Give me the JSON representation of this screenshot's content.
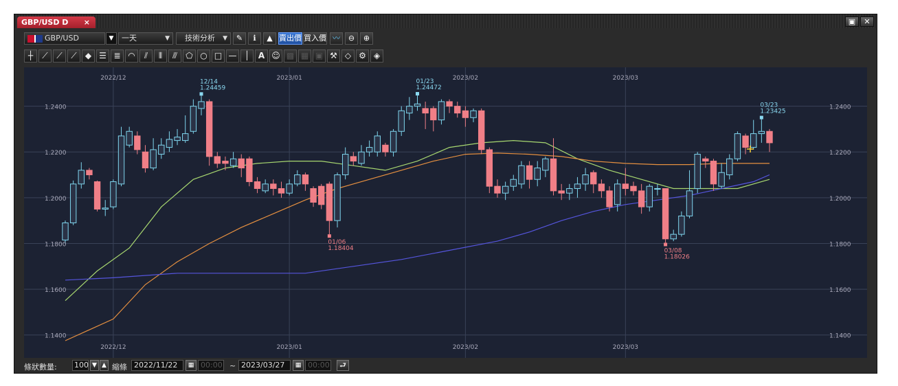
{
  "window": {
    "tab_title": "GBP/USD D",
    "tab_close": "×",
    "restore_icon": "restore-window-icon",
    "close_icon": "close-window-icon"
  },
  "toolbar": {
    "symbol": "GBP/USD",
    "period": "一天",
    "tech_analysis": "技術分析",
    "bid_label": "賣出價",
    "ask_label": "買入價",
    "icons": [
      "pencil-icon",
      "info-icon",
      "area-chart-icon",
      "line-chart-icon",
      "zoom-out-icon",
      "zoom-in-icon"
    ]
  },
  "drawing_tools": [
    "crosshair-icon",
    "line-1-icon",
    "line-2-icon",
    "line-3-icon",
    "eraser-icon",
    "parallel-lines-icon",
    "fib-lines-icon",
    "arc-icon",
    "channel-icon",
    "vertical-lines-icon",
    "pitchfork-icon",
    "pentagon-icon",
    "circle-icon",
    "rectangle-icon",
    "horizontal-line-icon",
    "vertical-line-icon",
    "text-icon",
    "smiley-icon",
    "paint-icon",
    "grid-icon",
    "layers-icon",
    "wrench-icon",
    "tag-icon",
    "settings-icon",
    "tag-edit-icon"
  ],
  "text_tool_label": "A",
  "bottom": {
    "count_label": "條狀數量:",
    "count_value": "100",
    "range_label": "縮條",
    "start_date": "2022/11/22",
    "start_time": "00:00",
    "tilde": "~",
    "end_date": "2023/03/27",
    "end_time": "00:00"
  },
  "colors": {
    "background": "#1c2233",
    "grid": "#3a4258",
    "bull": "#7fd6ee",
    "bear": "#f07f87",
    "ma_fast": "#a8d870",
    "ma_mid": "#e69040",
    "ma_slow": "#5555dd",
    "label": "#8ad8f0",
    "low_label": "#f07f87"
  },
  "chart_data": {
    "type": "candlestick",
    "ylim": [
      1.13,
      1.257
    ],
    "y_ticks": [
      "1.2400",
      "1.2200",
      "1.2000",
      "1.1800",
      "1.1600",
      "1.1400"
    ],
    "x_month_labels": [
      {
        "label": "2022/12",
        "index": 6
      },
      {
        "label": "2023/01",
        "index": 28
      },
      {
        "label": "2023/02",
        "index": 50
      },
      {
        "label": "2023/03",
        "index": 70
      }
    ],
    "candles": [
      [
        1.1815,
        1.189,
        1.18,
        1.19
      ],
      [
        1.189,
        1.206,
        1.188,
        1.2075
      ],
      [
        1.206,
        1.212,
        1.204,
        1.2155
      ],
      [
        1.212,
        1.21,
        1.208,
        1.213
      ],
      [
        1.207,
        1.195,
        1.194,
        1.2075
      ],
      [
        1.195,
        1.1955,
        1.192,
        1.199
      ],
      [
        1.196,
        1.207,
        1.195,
        1.208
      ],
      [
        1.206,
        1.227,
        1.205,
        1.231
      ],
      [
        1.223,
        1.229,
        1.222,
        1.231
      ],
      [
        1.227,
        1.221,
        1.219,
        1.229
      ],
      [
        1.22,
        1.213,
        1.211,
        1.223
      ],
      [
        1.213,
        1.221,
        1.212,
        1.226
      ],
      [
        1.219,
        1.223,
        1.217,
        1.226
      ],
      [
        1.222,
        1.2255,
        1.22,
        1.229
      ],
      [
        1.225,
        1.2265,
        1.223,
        1.23
      ],
      [
        1.225,
        1.228,
        1.224,
        1.236
      ],
      [
        1.229,
        1.24,
        1.228,
        1.243
      ],
      [
        1.239,
        1.242,
        1.236,
        1.2446
      ],
      [
        1.242,
        1.218,
        1.214,
        1.243
      ],
      [
        1.218,
        1.215,
        1.213,
        1.22
      ],
      [
        1.216,
        1.215,
        1.212,
        1.218
      ],
      [
        1.214,
        1.217,
        1.213,
        1.22
      ],
      [
        1.217,
        1.213,
        1.209,
        1.219
      ],
      [
        1.217,
        1.207,
        1.205,
        1.218
      ],
      [
        1.207,
        1.204,
        1.202,
        1.209
      ],
      [
        1.203,
        1.206,
        1.202,
        1.208
      ],
      [
        1.206,
        1.204,
        1.201,
        1.208
      ],
      [
        1.204,
        1.202,
        1.2,
        1.207
      ],
      [
        1.202,
        1.206,
        1.201,
        1.208
      ],
      [
        1.206,
        1.21,
        1.205,
        1.212
      ],
      [
        1.21,
        1.206,
        1.203,
        1.211
      ],
      [
        1.204,
        1.198,
        1.196,
        1.205
      ],
      [
        1.205,
        1.197,
        1.195,
        1.206
      ],
      [
        1.206,
        1.19,
        1.184,
        1.207
      ],
      [
        1.19,
        1.21,
        1.187,
        1.211
      ],
      [
        1.21,
        1.219,
        1.208,
        1.222
      ],
      [
        1.218,
        1.216,
        1.214,
        1.22
      ],
      [
        1.215,
        1.22,
        1.214,
        1.223
      ],
      [
        1.22,
        1.222,
        1.218,
        1.225
      ],
      [
        1.22,
        1.227,
        1.218,
        1.229
      ],
      [
        1.223,
        1.22,
        1.218,
        1.224
      ],
      [
        1.22,
        1.229,
        1.218,
        1.23
      ],
      [
        1.229,
        1.238,
        1.227,
        1.24
      ],
      [
        1.237,
        1.24,
        1.234,
        1.244
      ],
      [
        1.24,
        1.241,
        1.238,
        1.2447
      ],
      [
        1.239,
        1.237,
        1.23,
        1.242
      ],
      [
        1.239,
        1.234,
        1.229,
        1.24
      ],
      [
        1.234,
        1.242,
        1.232,
        1.243
      ],
      [
        1.242,
        1.24,
        1.237,
        1.243
      ],
      [
        1.24,
        1.237,
        1.235,
        1.242
      ],
      [
        1.238,
        1.235,
        1.231,
        1.24
      ],
      [
        1.235,
        1.238,
        1.233,
        1.239
      ],
      [
        1.238,
        1.221,
        1.219,
        1.239
      ],
      [
        1.221,
        1.205,
        1.202,
        1.222
      ],
      [
        1.205,
        1.202,
        1.2,
        1.208
      ],
      [
        1.202,
        1.205,
        1.199,
        1.207
      ],
      [
        1.205,
        1.208,
        1.203,
        1.21
      ],
      [
        1.206,
        1.214,
        1.204,
        1.216
      ],
      [
        1.214,
        1.208,
        1.204,
        1.216
      ],
      [
        1.208,
        1.213,
        1.205,
        1.216
      ],
      [
        1.212,
        1.217,
        1.209,
        1.218
      ],
      [
        1.217,
        1.203,
        1.201,
        1.226
      ],
      [
        1.203,
        1.202,
        1.199,
        1.206
      ],
      [
        1.202,
        1.204,
        1.199,
        1.206
      ],
      [
        1.204,
        1.206,
        1.2,
        1.209
      ],
      [
        1.206,
        1.21,
        1.203,
        1.213
      ],
      [
        1.211,
        1.206,
        1.202,
        1.212
      ],
      [
        1.206,
        1.203,
        1.2,
        1.208
      ],
      [
        1.203,
        1.196,
        1.194,
        1.205
      ],
      [
        1.197,
        1.206,
        1.194,
        1.208
      ],
      [
        1.206,
        1.204,
        1.201,
        1.213
      ],
      [
        1.205,
        1.203,
        1.201,
        1.207
      ],
      [
        1.203,
        1.196,
        1.193,
        1.206
      ],
      [
        1.196,
        1.205,
        1.194,
        1.206
      ],
      [
        1.204,
        1.204,
        1.201,
        1.206
      ],
      [
        1.204,
        1.182,
        1.1803,
        1.204
      ],
      [
        1.182,
        1.184,
        1.181,
        1.186
      ],
      [
        1.184,
        1.192,
        1.183,
        1.194
      ],
      [
        1.192,
        1.203,
        1.191,
        1.212
      ],
      [
        1.204,
        1.219,
        1.202,
        1.22
      ],
      [
        1.217,
        1.216,
        1.213,
        1.218
      ],
      [
        1.216,
        1.206,
        1.203,
        1.217
      ],
      [
        1.205,
        1.211,
        1.204,
        1.215
      ],
      [
        1.21,
        1.217,
        1.208,
        1.219
      ],
      [
        1.217,
        1.228,
        1.216,
        1.229
      ],
      [
        1.227,
        1.222,
        1.219,
        1.228
      ],
      [
        1.222,
        1.228,
        1.221,
        1.234
      ],
      [
        1.228,
        1.229,
        1.224,
        1.2343
      ],
      [
        1.229,
        1.224,
        1.22,
        1.23
      ]
    ],
    "ma_fast": [
      [
        0,
        1.155
      ],
      [
        4,
        1.168
      ],
      [
        8,
        1.178
      ],
      [
        12,
        1.196
      ],
      [
        16,
        1.208
      ],
      [
        20,
        1.213
      ],
      [
        24,
        1.215
      ],
      [
        28,
        1.216
      ],
      [
        32,
        1.216
      ],
      [
        36,
        1.214
      ],
      [
        40,
        1.212
      ],
      [
        44,
        1.216
      ],
      [
        48,
        1.222
      ],
      [
        52,
        1.224
      ],
      [
        56,
        1.225
      ],
      [
        60,
        1.224
      ],
      [
        64,
        1.217
      ],
      [
        68,
        1.212
      ],
      [
        72,
        1.208
      ],
      [
        76,
        1.204
      ],
      [
        80,
        1.204
      ],
      [
        84,
        1.204
      ],
      [
        88,
        1.208
      ]
    ],
    "ma_mid": [
      [
        0,
        1.1375
      ],
      [
        6,
        1.147
      ],
      [
        10,
        1.162
      ],
      [
        14,
        1.172
      ],
      [
        18,
        1.18
      ],
      [
        22,
        1.187
      ],
      [
        26,
        1.193
      ],
      [
        30,
        1.199
      ],
      [
        34,
        1.204
      ],
      [
        38,
        1.208
      ],
      [
        42,
        1.212
      ],
      [
        46,
        1.216
      ],
      [
        50,
        1.219
      ],
      [
        54,
        1.2195
      ],
      [
        58,
        1.219
      ],
      [
        62,
        1.218
      ],
      [
        66,
        1.216
      ],
      [
        70,
        1.215
      ],
      [
        74,
        1.2145
      ],
      [
        78,
        1.2145
      ],
      [
        82,
        1.215
      ],
      [
        86,
        1.215
      ],
      [
        88,
        1.215
      ]
    ],
    "ma_slow": [
      [
        0,
        1.164
      ],
      [
        6,
        1.165
      ],
      [
        14,
        1.167
      ],
      [
        22,
        1.167
      ],
      [
        30,
        1.167
      ],
      [
        36,
        1.17
      ],
      [
        42,
        1.173
      ],
      [
        48,
        1.177
      ],
      [
        54,
        1.181
      ],
      [
        58,
        1.185
      ],
      [
        62,
        1.19
      ],
      [
        66,
        1.194
      ],
      [
        70,
        1.197
      ],
      [
        74,
        1.199
      ],
      [
        78,
        1.201
      ],
      [
        82,
        1.204
      ],
      [
        86,
        1.207
      ],
      [
        88,
        1.21
      ]
    ],
    "annotations": [
      {
        "index": 17,
        "date": "12/14",
        "price": "1.24459",
        "kind": "high",
        "value": 1.2446
      },
      {
        "index": 44,
        "date": "01/23",
        "price": "1.24472",
        "kind": "high",
        "value": 1.2447
      },
      {
        "index": 33,
        "date": "01/06",
        "price": "1.18404",
        "kind": "low",
        "value": 1.184
      },
      {
        "index": 75,
        "date": "03/08",
        "price": "1.18026",
        "kind": "low",
        "value": 1.1803
      },
      {
        "index": 87,
        "date": "03/23",
        "price": "1.23425",
        "kind": "high",
        "value": 1.2343
      }
    ]
  }
}
